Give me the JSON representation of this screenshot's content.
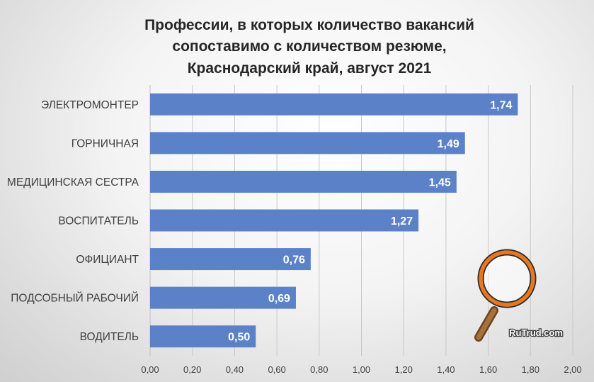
{
  "chart_data": {
    "type": "bar",
    "orientation": "horizontal",
    "title": [
      "Профессии,  в которых количество вакансий",
      "сопоставимо  с количеством резюме,",
      "Краснодарский край, август 2021"
    ],
    "categories": [
      "ЭЛЕКТРОМОНТЕР",
      "ГОРНИЧНАЯ",
      "МЕДИЦИНСКАЯ СЕСТРА",
      "ВОСПИТАТЕЛЬ",
      "ОФИЦИАНТ",
      "ПОДСОБНЫЙ РАБОЧИЙ",
      "ВОДИТЕЛЬ"
    ],
    "values": [
      1.74,
      1.49,
      1.45,
      1.27,
      0.76,
      0.69,
      0.5
    ],
    "data_labels": [
      "1,74",
      "1,49",
      "1,45",
      "1,27",
      "0,76",
      "0,69",
      "0,50"
    ],
    "xlim": [
      0,
      2.0
    ],
    "x_ticks": [
      "0,00",
      "0,20",
      "0,40",
      "0,60",
      "0,80",
      "1,00",
      "1,20",
      "1,40",
      "1,60",
      "1,80",
      "2,00"
    ],
    "grid": "vertical",
    "legend": "none",
    "bar_color": "#5b82c9"
  },
  "watermark": {
    "text": "RuTrud.com",
    "icon": "magnifier-icon",
    "ring_color": "#e87722",
    "handle_color": "#8b5a2b"
  }
}
